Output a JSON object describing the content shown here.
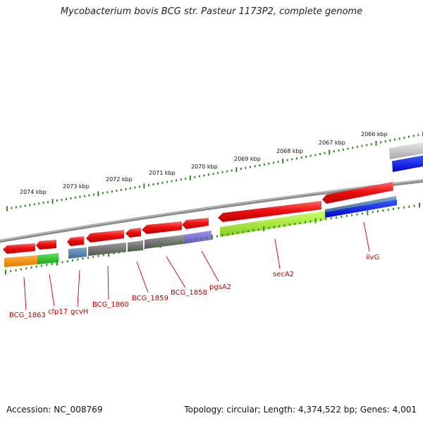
{
  "title": "Mycobacterium bovis BCG str. Pasteur 1173P2, complete genome",
  "footer": {
    "accession": "Accession: NC_008769",
    "summary": "Topology: circular; Length: 4,374,522 bp; Genes: 4,001"
  },
  "scale_ticks": [
    "2074 kbp",
    "2073 kbp",
    "2072 kbp",
    "2071 kbp",
    "2070 kbp",
    "2069 kbp",
    "2068 kbp",
    "2067 kbp",
    "2066 kbp"
  ],
  "gene_labels": [
    "BCG_1863",
    "cfp17",
    "gcvH",
    "BCG_1860",
    "BCG_1859",
    "BCG_1858",
    "pgsA2",
    "secA2",
    "ilvG"
  ],
  "colors": {
    "gene_arrow": "#ee1111",
    "backbone": "#888888",
    "tick": "#2e8b22",
    "label": "#c00000"
  }
}
